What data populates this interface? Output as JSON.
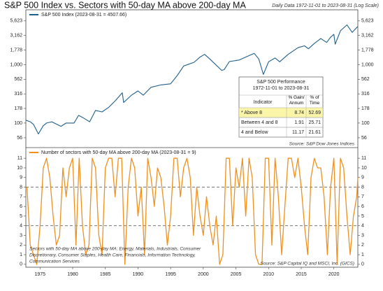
{
  "header": {
    "title": "S&P 500 Index vs. Sectors with 50-day MA above 200-day MA",
    "subtitle": "Daily Data 1972-11-01 to 2023-08-31 (Log Scale)"
  },
  "chart_data": [
    {
      "type": "line",
      "log_scale": true,
      "legend": "S&P 500 Index (2023-08-31 = 4507.66)",
      "source": "Source:  S&P Dow Jones Indices",
      "ylim": [
        38,
        8700
      ],
      "yticks": [
        {
          "value": 56,
          "label": "56"
        },
        {
          "value": 100,
          "label": "100"
        },
        {
          "value": 178,
          "label": "178"
        },
        {
          "value": 316,
          "label": "316"
        },
        {
          "value": 562,
          "label": "562"
        },
        {
          "value": 1000,
          "label": "1,000"
        },
        {
          "value": 1778,
          "label": "1,778"
        },
        {
          "value": 3162,
          "label": "3,162"
        },
        {
          "value": 5623,
          "label": "5,623"
        }
      ],
      "xlim": [
        1972.83,
        2023.67
      ],
      "series": [
        {
          "name": "S&P 500 Index",
          "color": "#1f5f8b",
          "x": [
            1972.83,
            1973.5,
            1974.0,
            1974.75,
            1975.5,
            1976.0,
            1976.8,
            1978.2,
            1979.0,
            1980.2,
            1980.9,
            1981.5,
            1982.6,
            1983.5,
            1984.5,
            1985.5,
            1986.5,
            1987.6,
            1987.8,
            1989.0,
            1990.0,
            1990.8,
            1992.0,
            1993.5,
            1995.0,
            1996.0,
            1997.0,
            1998.6,
            1999.5,
            2000.2,
            2001.0,
            2002.8,
            2003.2,
            2004.0,
            2005.5,
            2007.8,
            2008.5,
            2009.2,
            2010.0,
            2011.0,
            2011.7,
            2013.0,
            2014.5,
            2015.5,
            2016.1,
            2017.0,
            2018.0,
            2018.9,
            2019.5,
            2020.0,
            2020.2,
            2021.0,
            2022.0,
            2022.8,
            2023.67
          ],
          "values": [
            112,
            105,
            95,
            65,
            90,
            100,
            105,
            88,
            100,
            100,
            135,
            125,
            105,
            165,
            155,
            185,
            240,
            330,
            225,
            300,
            355,
            300,
            410,
            450,
            470,
            650,
            950,
            1100,
            1350,
            1500,
            1250,
            800,
            820,
            1130,
            1200,
            1560,
            1250,
            680,
            1120,
            1300,
            1120,
            1500,
            1950,
            2100,
            1870,
            2300,
            2800,
            2400,
            2950,
            3300,
            2240,
            3800,
            4790,
            3580,
            4507.66
          ]
        }
      ]
    },
    {
      "type": "line",
      "log_scale": false,
      "legend": "Number of sectors with 50-day MA above 200-day MA (2023-08-31 = 9)",
      "source": "Source:  S&P Capital IQ and MSCI, Inc. (GICS)",
      "note": [
        "Sectors with 50-day MA above 200-day MA:  Energy, Materials, Industrials, Consumer",
        "Discretionary, Consumer Staples, Health Care, Financials, Information Technology,",
        "Communication Services"
      ],
      "ylim": [
        -0.3,
        12.1
      ],
      "yticks": [
        0,
        1,
        2,
        3,
        4,
        5,
        6,
        7,
        8,
        9,
        10,
        11
      ],
      "reference_lines": [
        8,
        4
      ],
      "xlim": [
        1972.83,
        2023.67
      ],
      "xticks": [
        1975,
        1980,
        1985,
        1990,
        1995,
        2000,
        2005,
        2010,
        2015,
        2020
      ],
      "series": [
        {
          "name": "Sectors",
          "color": "#f0901e",
          "x": [
            1973.0,
            1973.5,
            1974.0,
            1974.5,
            1975.0,
            1975.5,
            1976.0,
            1976.5,
            1977.0,
            1977.5,
            1978.0,
            1978.5,
            1979.0,
            1979.5,
            1980.0,
            1980.5,
            1981.0,
            1981.5,
            1982.0,
            1982.5,
            1983.0,
            1983.5,
            1984.0,
            1984.5,
            1985.0,
            1985.5,
            1986.0,
            1986.5,
            1987.0,
            1987.5,
            1988.0,
            1988.5,
            1989.0,
            1989.5,
            1990.0,
            1990.5,
            1991.0,
            1991.5,
            1992.0,
            1992.5,
            1993.0,
            1993.5,
            1994.0,
            1994.5,
            1995.0,
            1995.5,
            1996.0,
            1996.5,
            1997.0,
            1997.5,
            1998.0,
            1998.5,
            1999.0,
            1999.5,
            2000.0,
            2000.5,
            2001.0,
            2001.5,
            2002.0,
            2002.5,
            2003.0,
            2003.5,
            2004.0,
            2004.5,
            2005.0,
            2005.5,
            2006.0,
            2006.5,
            2007.0,
            2007.5,
            2008.0,
            2008.5,
            2009.0,
            2009.5,
            2010.0,
            2010.5,
            2011.0,
            2011.5,
            2012.0,
            2012.5,
            2013.0,
            2013.5,
            2014.0,
            2014.5,
            2015.0,
            2015.5,
            2016.0,
            2016.5,
            2017.0,
            2017.5,
            2018.0,
            2018.5,
            2019.0,
            2019.5,
            2020.0,
            2020.5,
            2021.0,
            2021.5,
            2022.0,
            2022.5,
            2023.0,
            2023.5,
            2023.67
          ],
          "values": [
            8,
            2,
            1,
            0,
            4,
            10,
            11,
            9,
            5,
            2,
            3,
            10,
            7,
            10,
            11,
            2,
            11,
            4,
            1,
            2,
            11,
            10,
            3,
            1,
            10,
            11,
            11,
            7,
            11,
            11,
            0,
            8,
            11,
            10,
            5,
            8,
            1,
            11,
            9,
            6,
            10,
            9,
            6,
            2,
            5,
            11,
            11,
            7,
            10,
            11,
            9,
            3,
            8,
            5,
            3,
            7,
            4,
            2,
            5,
            0,
            1,
            11,
            11,
            4,
            10,
            8,
            11,
            5,
            11,
            9,
            1,
            0,
            0,
            11,
            11,
            2,
            11,
            7,
            1,
            6,
            11,
            11,
            9,
            11,
            8,
            4,
            1,
            9,
            11,
            10,
            10,
            7,
            1,
            8,
            11,
            0,
            11,
            10,
            5,
            1,
            5,
            7,
            9
          ]
        }
      ]
    }
  ],
  "table": {
    "title": [
      "S&P 500 Performance",
      "1972-11-01 to 2023-08-31"
    ],
    "columns": [
      "Indicator",
      "% Gain/ Annum",
      "% of Time"
    ],
    "rows": [
      [
        "* Above 8",
        "8.74",
        "52.69"
      ],
      [
        "Between 4 and 8",
        "1.91",
        "25.71"
      ],
      [
        "4 and Below",
        "11.17",
        "21.61"
      ]
    ]
  }
}
